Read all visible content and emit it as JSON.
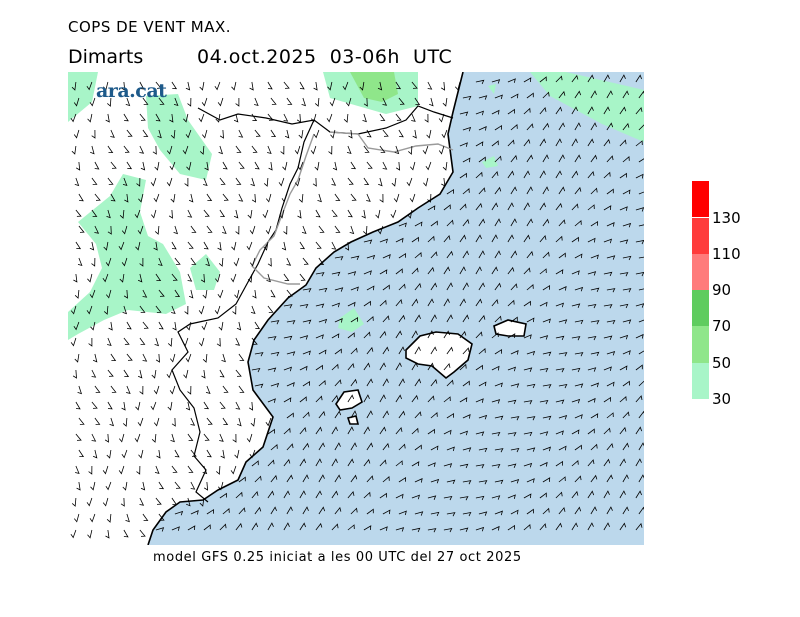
{
  "header": {
    "title": "COPS DE VENT MAX.",
    "day": "Dimarts",
    "date_time": "04.oct.2025  03-06h  UTC"
  },
  "logo": {
    "text": "ara.cat",
    "color": "#1e5a8a"
  },
  "footer": {
    "model_text": "model GFS 0.25 iniciat a les 00 UTC del 27 oct 2025"
  },
  "legend": {
    "bins": [
      {
        "from": 30,
        "to": 50,
        "color": "#a8f5c8",
        "label": "30"
      },
      {
        "from": 50,
        "to": 70,
        "color": "#8fe68a",
        "label": "50"
      },
      {
        "from": 70,
        "to": 90,
        "color": "#5fcc5f",
        "label": "70"
      },
      {
        "from": 90,
        "to": 110,
        "color": "#ff7b7b",
        "label": "90"
      },
      {
        "from": 110,
        "to": 130,
        "color": "#ff3b3b",
        "label": "110"
      },
      {
        "from": 130,
        "to": 150,
        "color": "#ff0000",
        "label": "130"
      }
    ]
  },
  "map_colors": {
    "sea": "#bcd8ec",
    "land": "#ffffff",
    "coast": "#000000",
    "border": "#9a9a9a",
    "gust_30_50": "#a8f5c8",
    "gust_50_70": "#8fe68a",
    "barb": "#000000"
  }
}
